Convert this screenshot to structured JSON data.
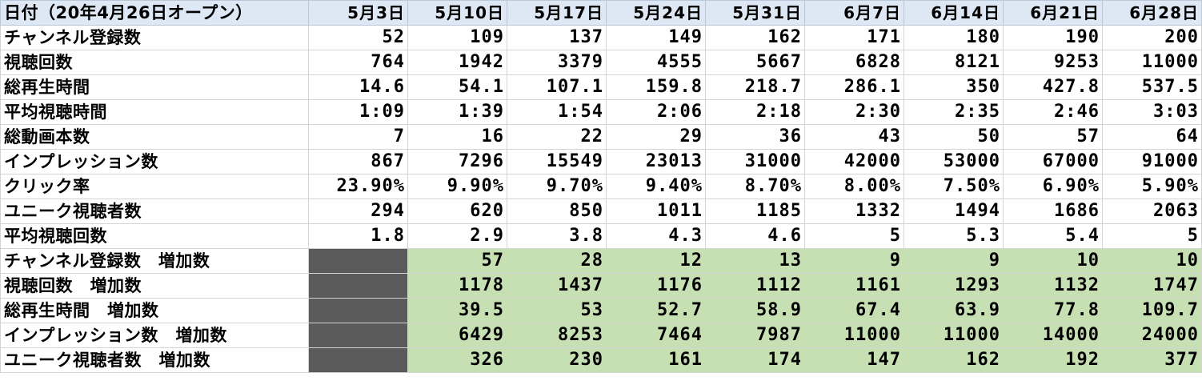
{
  "header": {
    "label": "日付（20年4月26日オープン）",
    "dates": [
      "5月3日",
      "5月10日",
      "5月17日",
      "5月24日",
      "5月31日",
      "6月7日",
      "6月14日",
      "6月21日",
      "6月28日"
    ]
  },
  "rows": [
    {
      "label": "チャンネル登録数",
      "values": [
        "52",
        "109",
        "137",
        "149",
        "162",
        "171",
        "180",
        "190",
        "200"
      ]
    },
    {
      "label": "視聴回数",
      "values": [
        "764",
        "1942",
        "3379",
        "4555",
        "5667",
        "6828",
        "8121",
        "9253",
        "11000"
      ]
    },
    {
      "label": "総再生時間",
      "values": [
        "14.6",
        "54.1",
        "107.1",
        "159.8",
        "218.7",
        "286.1",
        "350",
        "427.8",
        "537.5"
      ]
    },
    {
      "label": "平均視聴時間",
      "values": [
        "1:09",
        "1:39",
        "1:54",
        "2:06",
        "2:18",
        "2:30",
        "2:35",
        "2:46",
        "3:03"
      ]
    },
    {
      "label": "総動画本数",
      "values": [
        "7",
        "16",
        "22",
        "29",
        "36",
        "43",
        "50",
        "57",
        "64"
      ]
    },
    {
      "label": "インプレッション数",
      "values": [
        "867",
        "7296",
        "15549",
        "23013",
        "31000",
        "42000",
        "53000",
        "67000",
        "91000"
      ]
    },
    {
      "label": "クリック率",
      "values": [
        "23.90%",
        "9.90%",
        "9.70%",
        "9.40%",
        "8.70%",
        "8.00%",
        "7.50%",
        "6.90%",
        "5.90%"
      ]
    },
    {
      "label": "ユニーク視聴者数",
      "values": [
        "294",
        "620",
        "850",
        "1011",
        "1185",
        "1332",
        "1494",
        "1686",
        "2063"
      ]
    },
    {
      "label": "平均視聴回数",
      "values": [
        "1.8",
        "2.9",
        "3.8",
        "4.3",
        "4.6",
        "5",
        "5.3",
        "5.4",
        "5"
      ]
    }
  ],
  "increase_rows": [
    {
      "label": "チャンネル登録数　増加数",
      "values": [
        "",
        "57",
        "28",
        "12",
        "13",
        "9",
        "9",
        "10",
        "10"
      ]
    },
    {
      "label": "視聴回数　増加数",
      "values": [
        "",
        "1178",
        "1437",
        "1176",
        "1112",
        "1161",
        "1293",
        "1132",
        "1747"
      ]
    },
    {
      "label": "総再生時間　増加数",
      "values": [
        "",
        "39.5",
        "53",
        "52.7",
        "58.9",
        "67.4",
        "63.9",
        "77.8",
        "109.7"
      ]
    },
    {
      "label": "インプレッション数　増加数",
      "values": [
        "",
        "6429",
        "8253",
        "7464",
        "7987",
        "11000",
        "11000",
        "14000",
        "24000"
      ]
    },
    {
      "label": "ユニーク視聴者数　増加数",
      "values": [
        "",
        "326",
        "230",
        "161",
        "174",
        "147",
        "162",
        "192",
        "377"
      ]
    }
  ],
  "colors": {
    "header_fill": "#dde8f4",
    "increase_fill": "#c6dfb3",
    "empty_fill": "#5a5a5a"
  }
}
